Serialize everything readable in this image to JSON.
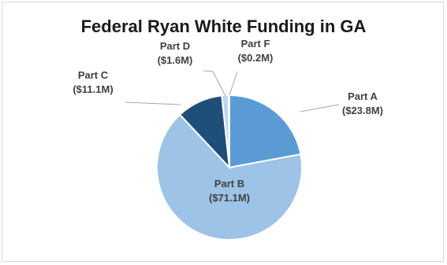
{
  "chart_data": {
    "type": "pie",
    "title": "Federal Ryan White Funding in GA",
    "slices": [
      {
        "name": "Part A",
        "value": 23.8,
        "label": "($23.8M)",
        "color": "#5b9bd5"
      },
      {
        "name": "Part B",
        "value": 71.1,
        "label": "($71.1M)",
        "color": "#9dc3e6"
      },
      {
        "name": "Part C",
        "value": 11.1,
        "label": "($11.1M)",
        "color": "#1f4e79"
      },
      {
        "name": "Part D",
        "value": 1.6,
        "label": "($1.6M)",
        "color": "#bdd7ee"
      },
      {
        "name": "Part F",
        "value": 0.2,
        "label": "($0.2M)",
        "color": "#2e75b6"
      }
    ],
    "start_angle_deg": 0,
    "direction": "clockwise",
    "legend": "none",
    "label_color": "#404040",
    "leader_color": "#a6a6a6"
  }
}
